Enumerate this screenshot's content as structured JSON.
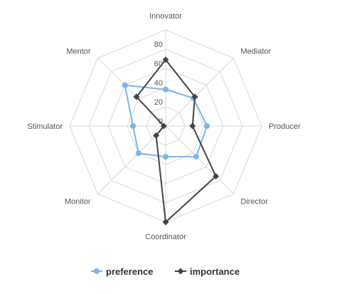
{
  "chart_data": {
    "type": "radar",
    "axes": [
      "Innovator",
      "Mediator",
      "Producer",
      "Director",
      "Coordinator",
      "Monitor",
      "Stimulator",
      "Mentor"
    ],
    "rlim": [
      0,
      100
    ],
    "ticks": [
      0,
      20,
      40,
      60,
      80
    ],
    "grid": true,
    "legend_position": "bottom",
    "series": [
      {
        "name": "preference",
        "color": "#7cb5ec",
        "marker": "circle",
        "values": [
          38,
          41,
          43,
          45,
          32,
          40,
          34,
          60
        ]
      },
      {
        "name": "importance",
        "color": "#434348",
        "marker": "diamond",
        "values": [
          69,
          43,
          28,
          74,
          100,
          14,
          2,
          43
        ]
      }
    ]
  },
  "legend": {
    "items": [
      "preference",
      "importance"
    ]
  }
}
